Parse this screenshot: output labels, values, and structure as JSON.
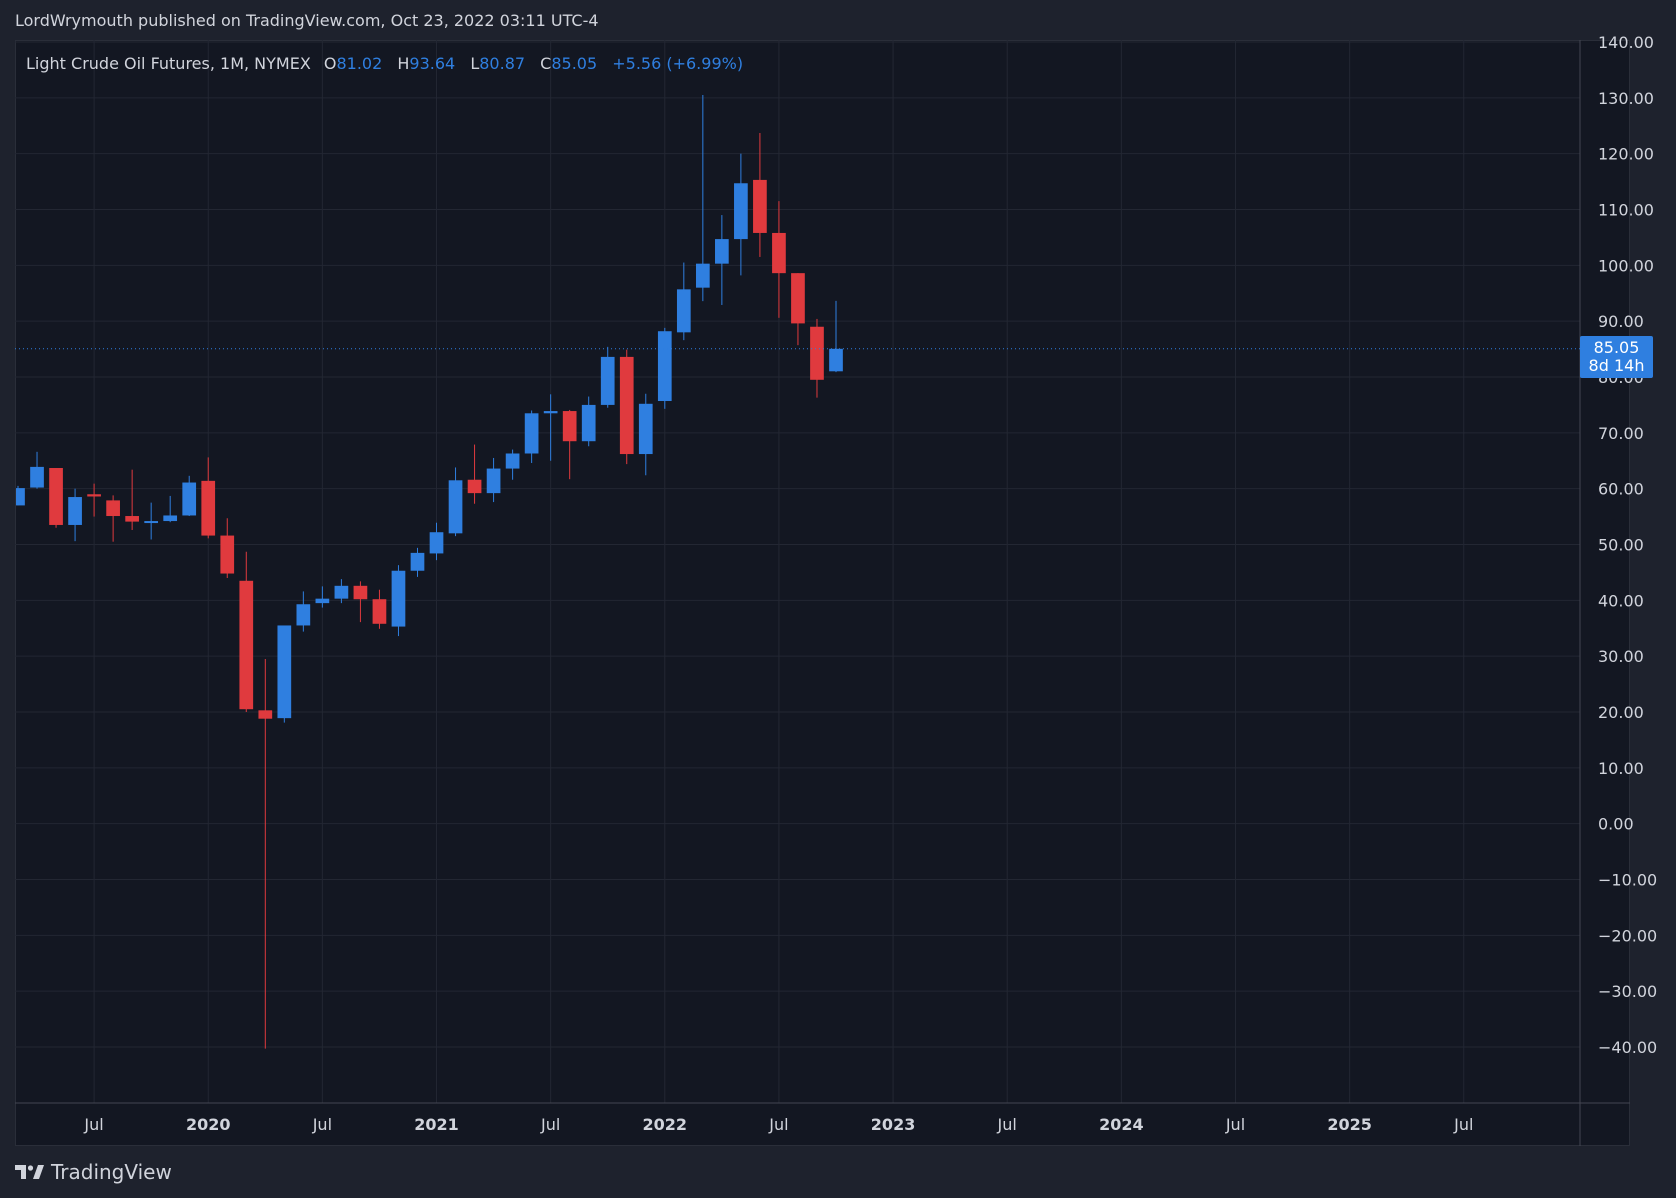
{
  "header": {
    "publish_line": "LordWrymouth published on TradingView.com, Oct 23, 2022 03:11 UTC-4"
  },
  "legend": {
    "symbol": "Light Crude Oil Futures, 1M, NYMEX",
    "open_label": "O",
    "open_value": "81.02",
    "high_label": "H",
    "high_value": "93.64",
    "low_label": "L",
    "low_value": "80.87",
    "close_label": "C",
    "close_value": "85.05",
    "change": "+5.56 (+6.99%)"
  },
  "price_tag": {
    "price": "85.05",
    "countdown": "8d 14h"
  },
  "brand": {
    "name": "TradingView",
    "logo_icon": "tradingview-logo-icon"
  },
  "colors": {
    "up": "#2f7fe0",
    "down": "#e03a3e",
    "background": "#131722",
    "grid": "#232733",
    "text": "#d1d4dc"
  },
  "chart_data": {
    "type": "candlestick",
    "y_range": [
      -50,
      140
    ],
    "y_ticks": [
      "140.00",
      "130.00",
      "120.00",
      "110.00",
      "100.00",
      "90.00",
      "80.00",
      "70.00",
      "60.00",
      "50.00",
      "40.00",
      "30.00",
      "20.00",
      "10.00",
      "0.00",
      "−10.00",
      "−20.00",
      "−30.00",
      "−40.00"
    ],
    "y_tick_values": [
      140,
      130,
      120,
      110,
      100,
      90,
      80,
      70,
      60,
      50,
      40,
      30,
      20,
      10,
      0,
      -10,
      -20,
      -30,
      -40
    ],
    "x_ticks": [
      "Jul",
      "2020",
      "Jul",
      "2021",
      "Jul",
      "2022",
      "Jul",
      "2023",
      "Jul",
      "2024",
      "Jul",
      "2025",
      "Jul"
    ],
    "x_tick_months": [
      "2019-07",
      "2020-01",
      "2020-07",
      "2021-01",
      "2021-07",
      "2022-01",
      "2022-07",
      "2023-01",
      "2023-07",
      "2024-01",
      "2024-07",
      "2025-01",
      "2025-07"
    ],
    "x_start_month": "2019-03",
    "x_end_month": "2026-01",
    "current_price": 85.05,
    "candles": [
      {
        "month": "2019-03",
        "o": 57.0,
        "h": 60.5,
        "l": 57.0,
        "c": 60.1
      },
      {
        "month": "2019-04",
        "o": 60.2,
        "h": 66.6,
        "l": 60.0,
        "c": 63.9
      },
      {
        "month": "2019-05",
        "o": 63.7,
        "h": 63.7,
        "l": 53.0,
        "c": 53.5
      },
      {
        "month": "2019-06",
        "o": 53.5,
        "h": 60.0,
        "l": 50.6,
        "c": 58.5
      },
      {
        "month": "2019-07",
        "o": 59.0,
        "h": 60.9,
        "l": 55.0,
        "c": 58.6
      },
      {
        "month": "2019-08",
        "o": 57.9,
        "h": 58.8,
        "l": 50.5,
        "c": 55.1
      },
      {
        "month": "2019-09",
        "o": 55.1,
        "h": 63.4,
        "l": 52.6,
        "c": 54.1
      },
      {
        "month": "2019-10",
        "o": 54.1,
        "h": 57.5,
        "l": 50.9,
        "c": 54.2
      },
      {
        "month": "2019-11",
        "o": 54.2,
        "h": 58.7,
        "l": 54.0,
        "c": 55.2
      },
      {
        "month": "2019-12",
        "o": 55.2,
        "h": 62.3,
        "l": 55.1,
        "c": 61.1
      },
      {
        "month": "2020-01",
        "o": 61.4,
        "h": 65.6,
        "l": 51.1,
        "c": 51.6
      },
      {
        "month": "2020-02",
        "o": 51.6,
        "h": 54.7,
        "l": 44.0,
        "c": 44.8
      },
      {
        "month": "2020-03",
        "o": 43.5,
        "h": 48.7,
        "l": 20.0,
        "c": 20.5
      },
      {
        "month": "2020-04",
        "o": 20.3,
        "h": 29.5,
        "l": -40.3,
        "c": 18.8
      },
      {
        "month": "2020-05",
        "o": 18.9,
        "h": 35.3,
        "l": 18.1,
        "c": 35.5
      },
      {
        "month": "2020-06",
        "o": 35.5,
        "h": 41.6,
        "l": 34.4,
        "c": 39.3
      },
      {
        "month": "2020-07",
        "o": 39.5,
        "h": 42.5,
        "l": 38.7,
        "c": 40.3
      },
      {
        "month": "2020-08",
        "o": 40.3,
        "h": 43.8,
        "l": 39.5,
        "c": 42.6
      },
      {
        "month": "2020-09",
        "o": 42.6,
        "h": 43.4,
        "l": 36.1,
        "c": 40.2
      },
      {
        "month": "2020-10",
        "o": 40.2,
        "h": 41.9,
        "l": 34.9,
        "c": 35.8
      },
      {
        "month": "2020-11",
        "o": 35.3,
        "h": 46.3,
        "l": 33.6,
        "c": 45.3
      },
      {
        "month": "2020-12",
        "o": 45.3,
        "h": 49.4,
        "l": 44.2,
        "c": 48.5
      },
      {
        "month": "2021-01",
        "o": 48.4,
        "h": 53.9,
        "l": 47.2,
        "c": 52.2
      },
      {
        "month": "2021-02",
        "o": 52.0,
        "h": 63.8,
        "l": 51.5,
        "c": 61.5
      },
      {
        "month": "2021-03",
        "o": 61.6,
        "h": 67.9,
        "l": 57.3,
        "c": 59.2
      },
      {
        "month": "2021-04",
        "o": 59.2,
        "h": 65.5,
        "l": 57.6,
        "c": 63.6
      },
      {
        "month": "2021-05",
        "o": 63.6,
        "h": 67.0,
        "l": 61.6,
        "c": 66.3
      },
      {
        "month": "2021-06",
        "o": 66.3,
        "h": 74.0,
        "l": 64.6,
        "c": 73.5
      },
      {
        "month": "2021-07",
        "o": 73.5,
        "h": 76.9,
        "l": 65.0,
        "c": 73.9
      },
      {
        "month": "2021-08",
        "o": 73.9,
        "h": 74.1,
        "l": 61.7,
        "c": 68.5
      },
      {
        "method": "",
        "month": "2021-09",
        "o": 68.5,
        "h": 76.5,
        "l": 67.6,
        "c": 75.0
      },
      {
        "month": "2021-10",
        "o": 75.0,
        "h": 85.4,
        "l": 74.5,
        "c": 83.6
      },
      {
        "month": "2021-11",
        "o": 83.6,
        "h": 84.9,
        "l": 64.4,
        "c": 66.2
      },
      {
        "month": "2021-12",
        "o": 66.2,
        "h": 77.0,
        "l": 62.4,
        "c": 75.2
      },
      {
        "month": "2022-01",
        "o": 75.7,
        "h": 88.8,
        "l": 74.3,
        "c": 88.2
      },
      {
        "month": "2022-02",
        "o": 88.0,
        "h": 100.5,
        "l": 86.6,
        "c": 95.7
      },
      {
        "month": "2022-03",
        "o": 96.0,
        "h": 130.5,
        "l": 93.6,
        "c": 100.3
      },
      {
        "month": "2022-04",
        "o": 100.3,
        "h": 109.0,
        "l": 92.9,
        "c": 104.7
      },
      {
        "month": "2022-05",
        "o": 104.7,
        "h": 120.0,
        "l": 98.2,
        "c": 114.7
      },
      {
        "month": "2022-06",
        "o": 115.3,
        "h": 123.7,
        "l": 101.5,
        "c": 105.8
      },
      {
        "month": "2022-07",
        "o": 105.8,
        "h": 111.5,
        "l": 90.6,
        "c": 98.6
      },
      {
        "month": "2022-08",
        "o": 98.6,
        "h": 98.6,
        "l": 85.7,
        "c": 89.6
      },
      {
        "month": "2022-09",
        "o": 89.0,
        "h": 90.4,
        "l": 76.3,
        "c": 79.5
      },
      {
        "month": "2022-10",
        "o": 81.02,
        "h": 93.64,
        "l": 80.87,
        "c": 85.05
      }
    ]
  }
}
